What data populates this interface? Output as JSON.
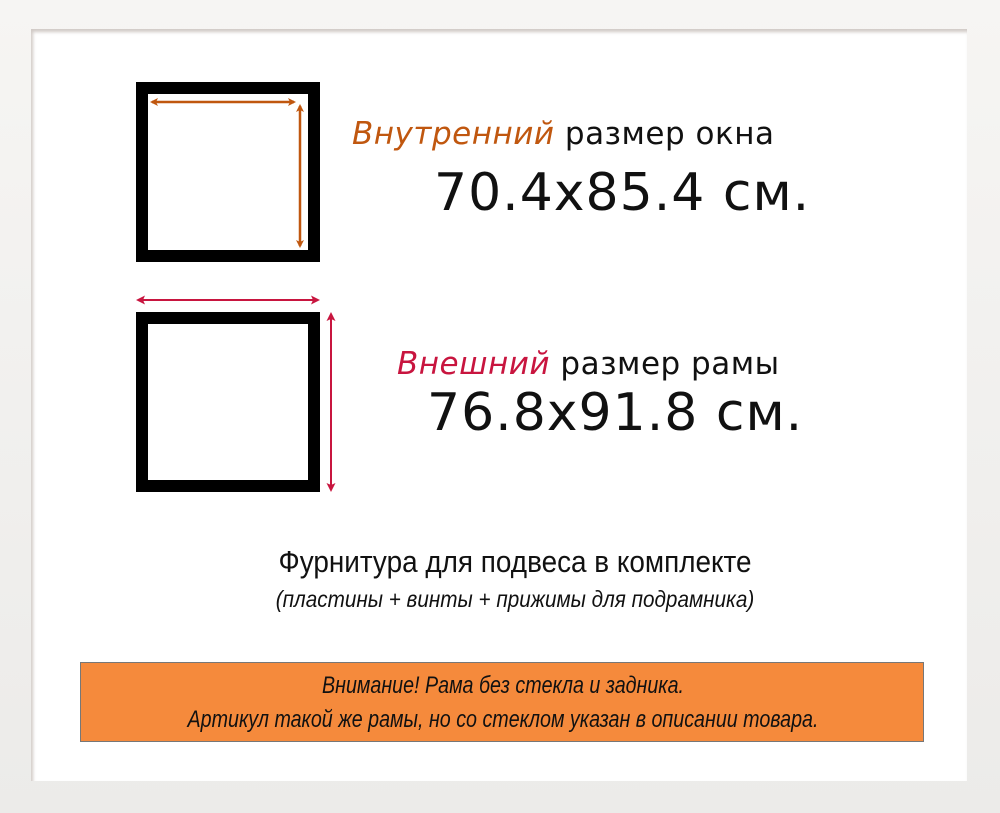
{
  "inner_size": {
    "accent_word": "Внутренний",
    "rest": " размер окна",
    "value": "70.4x85.4 см.",
    "accent_color": "#c0570f"
  },
  "outer_size": {
    "accent_word": "Внешний",
    "rest": " размер рамы",
    "value": "76.8x91.8 см.",
    "accent_color": "#c8153f"
  },
  "hardware": {
    "line1": "Фурнитура для подвеса в комплекте",
    "line2": "(пластины + винты + прижимы для подрамника)"
  },
  "notice": {
    "line1": "Внимание! Рама без стекла и задника.",
    "line2": "Артикул такой же рамы, но со стеклом указан в описании товара.",
    "background": "#f58a3c"
  }
}
